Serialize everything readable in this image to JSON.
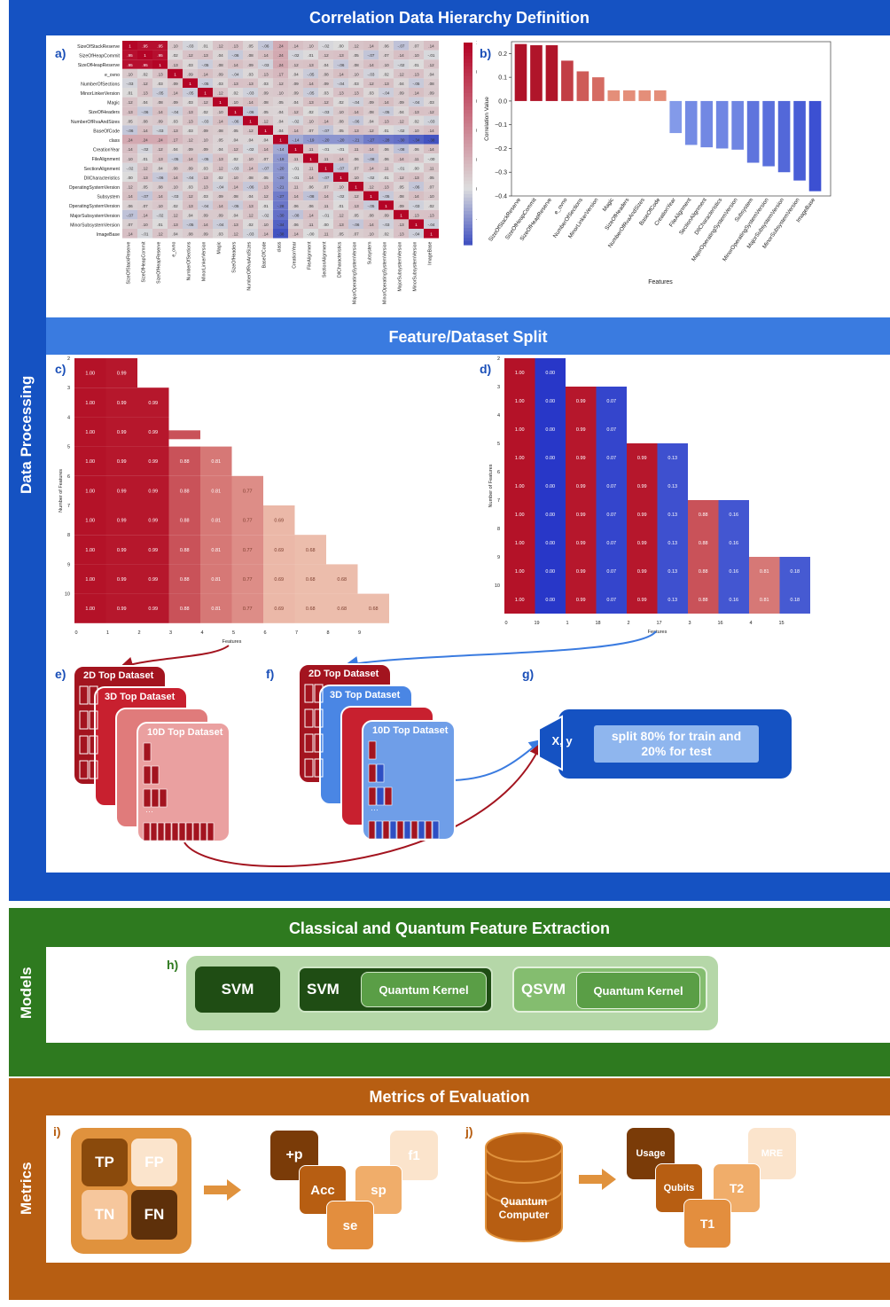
{
  "sections": {
    "data_processing": "Data Processing",
    "models": "Models",
    "metrics": "Metrics"
  },
  "headers": {
    "correlation": "Correlation Data Hierarchy Definition",
    "split": "Feature/Dataset Split",
    "extraction": "Classical and Quantum Feature Extraction",
    "evaluation": "Metrics of Evaluation"
  },
  "panel_labels": {
    "a": "a)",
    "b": "b)",
    "c": "c)",
    "d": "d)",
    "e": "e)",
    "f": "f)",
    "g": "g)",
    "h": "h)",
    "i": "i)",
    "j": "j)"
  },
  "colors": {
    "red": "#b5142b",
    "blue": "#3b4fc8",
    "green": "#2e7a1f",
    "orange": "#b75e12",
    "blue_band": "#1552c2"
  },
  "chart_data": [
    {
      "id": "a",
      "type": "heatmap",
      "labels": [
        "SizeOfStackReserve",
        "SizeOfHeapCommit",
        "SizeOfHeapReserve",
        "e_ovno",
        "NumberOfSections",
        "MinorLinkerVersion",
        "Magic",
        "SizeOfHeaders",
        "NumberOfRvaAndSizes",
        "BaseOfCode",
        "class",
        "CreationYear",
        "FileAlignment",
        "SectionAlignment",
        "DllCharacteristics",
        "MajorOperatingSystemVersion",
        "Subsystem",
        "MinorOperatingSystemVersion",
        "MajorSubsystemVersion",
        "MinorSubsystemVersion",
        "ImageBase"
      ],
      "corr_with_class": [
        0.24,
        0.24,
        0.24,
        0.17,
        0.12,
        0.1,
        0.05,
        0.04,
        0.04,
        0.04,
        1,
        -0.14,
        -0.19,
        -0.2,
        -0.2,
        -0.21,
        -0.27,
        -0.28,
        -0.3,
        -0.34,
        -0.38
      ],
      "colorbar_ticks": [
        "1.0",
        "0.8",
        "0.6",
        "0.4",
        "0.2",
        "0.0",
        "-0.2"
      ],
      "vlim": [
        -0.38,
        1.0
      ]
    },
    {
      "id": "b",
      "type": "bar",
      "categories": [
        "SizeOfStackReserve",
        "SizeOfHeapCommit",
        "SizeOfHeapReserve",
        "e_ovno",
        "NumberOfSections",
        "MinorLinkerVersion",
        "Magic",
        "SizeOfHeaders",
        "NumberOfRvaAndSizes",
        "BaseOfCode",
        "CreationYear",
        "FileAlignment",
        "SectionAlignment",
        "DllCharacteristics",
        "MajorOperatingSystemVersion",
        "Subsystem",
        "MinorOperatingSystemVersion",
        "MajorSubsystemVersion",
        "MinorSubsystemVersion",
        "ImageBase"
      ],
      "values": [
        0.24,
        0.235,
        0.235,
        0.17,
        0.125,
        0.1,
        0.045,
        0.045,
        0.045,
        0.045,
        -0.135,
        -0.185,
        -0.195,
        -0.2,
        -0.205,
        -0.26,
        -0.275,
        -0.3,
        -0.335,
        -0.38
      ],
      "xlabel": "Features",
      "ylabel": "Correlation Value",
      "ylim": [
        -0.4,
        0.25
      ],
      "yticks": [
        0.2,
        0.1,
        0.0,
        -0.1,
        -0.2,
        -0.3,
        -0.4
      ],
      "ytick_labels": [
        "0.2",
        "0.1",
        "0.0",
        "−0.1",
        "−0.2",
        "−0.3",
        "−0.4"
      ]
    },
    {
      "id": "c",
      "type": "heatmap",
      "xlabel": "Features",
      "ylabel": "Number of Features",
      "x_ticks": [
        "0",
        "1",
        "2",
        "3",
        "4",
        "5",
        "6",
        "7",
        "8",
        "9"
      ],
      "y_ticks": [
        "2",
        "3",
        "4",
        "5",
        "6",
        "7",
        "8",
        "9",
        "10"
      ],
      "column_values": [
        "1.00",
        "0.99",
        "0.99",
        "0.88",
        "0.81",
        "0.77",
        "0.69",
        "0.68",
        "0.68",
        "0.68"
      ],
      "column_start_rows": [
        0,
        0,
        1,
        3,
        3,
        4,
        5,
        6,
        7,
        8
      ],
      "partial_cell": {
        "col": 3,
        "row": 2
      }
    },
    {
      "id": "d",
      "type": "heatmap",
      "xlabel": "Features",
      "ylabel": "Number of Features",
      "x_ticks": [
        "0",
        "19",
        "1",
        "18",
        "2",
        "17",
        "3",
        "16",
        "4",
        "15"
      ],
      "y_ticks": [
        "2",
        "3",
        "4",
        "5",
        "6",
        "7",
        "8",
        "9",
        "10"
      ],
      "column_values": [
        "1.00",
        "0.00",
        "0.99",
        "0.07",
        "0.99",
        "0.13",
        "0.88",
        "0.16",
        "0.81",
        "0.18"
      ],
      "column_start_rows": [
        0,
        0,
        1,
        1,
        3,
        3,
        5,
        5,
        7,
        7
      ]
    }
  ],
  "datasets_e": [
    "2D Top Dataset",
    "3D Top Dataset",
    "10D Top Dataset"
  ],
  "datasets_f": [
    "2D Top Dataset",
    "3D Top Dataset",
    "10D Top Dataset"
  ],
  "xy_label": "X, y",
  "split_text": "split 80% for train and 20% for test",
  "models": {
    "svm": "SVM",
    "svm2": "SVM",
    "qk1": "Quantum Kernel",
    "qsvm": "QSVM",
    "qk2": "Quantum Kernel"
  },
  "confusion": {
    "tp": "TP",
    "fp": "FP",
    "tn": "TN",
    "fn": "FN"
  },
  "classical_metrics": {
    "p": "+p",
    "acc": "Acc",
    "sp": "sp",
    "se": "se",
    "f1": "f1"
  },
  "quantum_computer": "Quantum Computer",
  "quantum_metrics": {
    "usage": "Usage",
    "qubits": "Qubits",
    "t2": "T2",
    "t1": "T1",
    "mre": "MRE"
  }
}
